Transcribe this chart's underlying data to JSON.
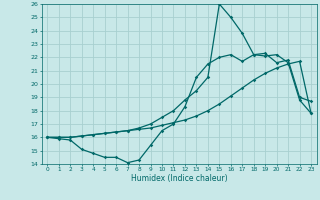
{
  "xlabel": "Humidex (Indice chaleur)",
  "bg_color": "#c8e8e8",
  "grid_color": "#a8d0d0",
  "line_color": "#006868",
  "xlim": [
    -0.5,
    23.5
  ],
  "ylim": [
    14,
    26
  ],
  "xticks": [
    0,
    1,
    2,
    3,
    4,
    5,
    6,
    7,
    8,
    9,
    10,
    11,
    12,
    13,
    14,
    15,
    16,
    17,
    18,
    19,
    20,
    21,
    22,
    23
  ],
  "yticks": [
    14,
    15,
    16,
    17,
    18,
    19,
    20,
    21,
    22,
    23,
    24,
    25,
    26
  ],
  "series1_x": [
    0,
    1,
    2,
    3,
    4,
    5,
    6,
    7,
    8,
    9,
    10,
    11,
    12,
    13,
    14,
    15,
    16,
    17,
    18,
    19,
    20,
    21,
    22,
    23
  ],
  "series1_y": [
    16.0,
    15.9,
    15.8,
    15.1,
    14.8,
    14.5,
    14.5,
    14.1,
    14.3,
    15.4,
    16.5,
    17.0,
    18.3,
    20.5,
    21.5,
    22.0,
    22.2,
    21.7,
    22.2,
    22.3,
    21.6,
    21.8,
    19.0,
    18.7
  ],
  "series2_x": [
    0,
    1,
    2,
    3,
    4,
    5,
    6,
    7,
    8,
    9,
    10,
    11,
    12,
    13,
    14,
    15,
    16,
    17,
    18,
    19,
    20,
    21,
    22,
    23
  ],
  "series2_y": [
    16.0,
    16.0,
    16.0,
    16.1,
    16.2,
    16.3,
    16.4,
    16.5,
    16.6,
    16.7,
    16.9,
    17.1,
    17.3,
    17.6,
    18.0,
    18.5,
    19.1,
    19.7,
    20.3,
    20.8,
    21.2,
    21.5,
    21.7,
    17.8
  ],
  "series3_x": [
    0,
    1,
    2,
    3,
    4,
    5,
    6,
    7,
    8,
    9,
    10,
    11,
    12,
    13,
    14,
    15,
    16,
    17,
    18,
    19,
    20,
    21,
    22,
    23
  ],
  "series3_y": [
    16.0,
    16.0,
    16.0,
    16.1,
    16.2,
    16.3,
    16.4,
    16.5,
    16.7,
    17.0,
    17.5,
    18.0,
    18.8,
    19.5,
    20.5,
    26.0,
    25.0,
    23.8,
    22.2,
    22.1,
    22.2,
    21.6,
    18.8,
    17.8
  ]
}
